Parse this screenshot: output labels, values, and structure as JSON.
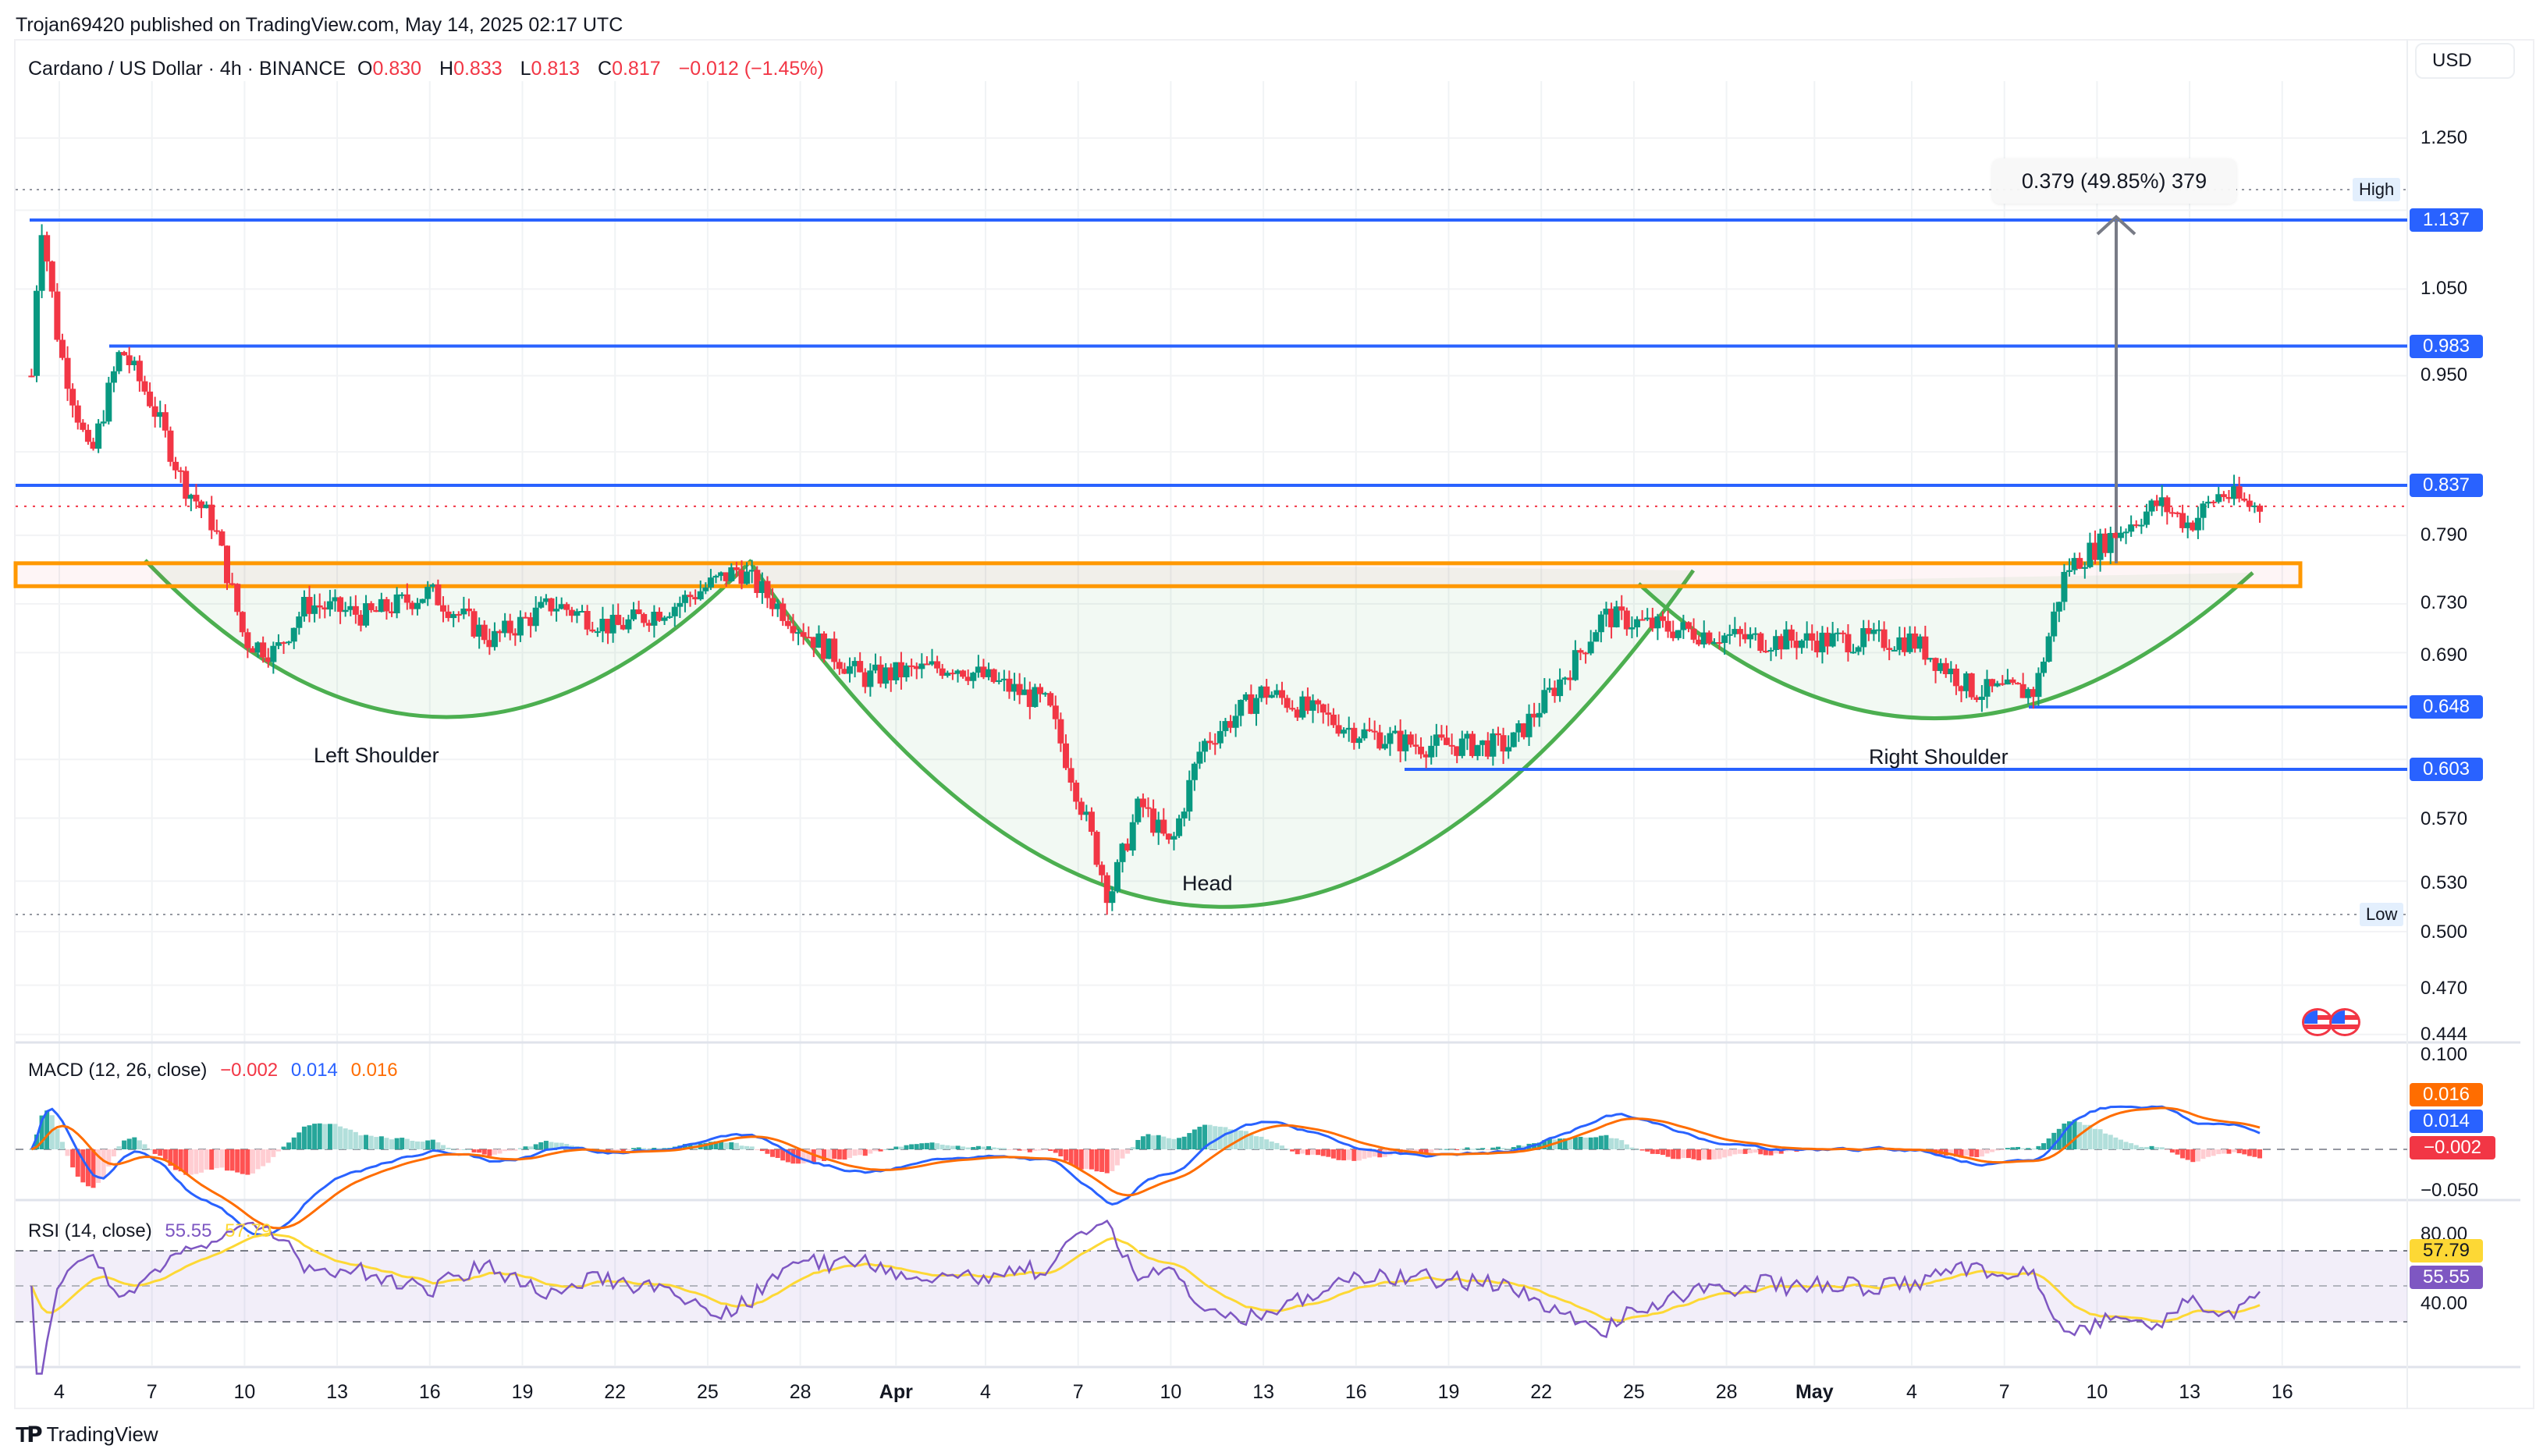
{
  "header": {
    "published": "Trojan69420 published on TradingView.com, May 14, 2025 02:17 UTC"
  },
  "symbol": {
    "title": "Cardano / US Dollar · 4h · BINANCE",
    "o_label": "O",
    "o": "0.830",
    "h_label": "H",
    "h": "0.833",
    "l_label": "L",
    "l": "0.813",
    "c_label": "C",
    "c": "0.817",
    "change": "−0.012 (−1.45%)"
  },
  "currency_button": "USD",
  "price_axis": {
    "ticks": [
      "1.250",
      "1.050",
      "0.950",
      "0.790",
      "0.730",
      "0.690",
      "0.570",
      "0.530",
      "0.500",
      "0.470",
      "0.444"
    ],
    "tags": [
      {
        "value": "1.137",
        "color": "#2962ff"
      },
      {
        "value": "0.983",
        "color": "#2962ff"
      },
      {
        "value": "0.837",
        "color": "#2962ff"
      },
      {
        "value": "0.648",
        "color": "#2962ff"
      },
      {
        "value": "0.603",
        "color": "#2962ff"
      }
    ],
    "high_label": "High",
    "low_label": "Low"
  },
  "measurement": {
    "text": "0.379 (49.85%) 379"
  },
  "pattern_labels": {
    "left_shoulder": "Left Shoulder",
    "head": "Head",
    "right_shoulder": "Right Shoulder"
  },
  "macd": {
    "title": "MACD (12, 26, close)",
    "hist": "−0.002",
    "macd": "0.014",
    "signal": "0.016",
    "axis": [
      "0.100",
      "−0.050"
    ],
    "tags": [
      {
        "value": "0.016",
        "color": "#ff6d00"
      },
      {
        "value": "0.014",
        "color": "#2962ff"
      },
      {
        "value": "−0.002",
        "color": "#f23645"
      }
    ]
  },
  "rsi": {
    "title": "RSI (14, close)",
    "rsi": "55.55",
    "ma": "57.79",
    "axis": [
      "80.00",
      "40.00"
    ],
    "tags": [
      {
        "value": "57.79",
        "color": "#fdd835",
        "text": "#131722"
      },
      {
        "value": "55.55",
        "color": "#7e57c2",
        "text": "#ffffff"
      }
    ]
  },
  "x_axis": {
    "labels": [
      {
        "t": "4",
        "bold": false
      },
      {
        "t": "7",
        "bold": false
      },
      {
        "t": "10",
        "bold": false
      },
      {
        "t": "13",
        "bold": false
      },
      {
        "t": "16",
        "bold": false
      },
      {
        "t": "19",
        "bold": false
      },
      {
        "t": "22",
        "bold": false
      },
      {
        "t": "25",
        "bold": false
      },
      {
        "t": "28",
        "bold": false
      },
      {
        "t": "Apr",
        "bold": true
      },
      {
        "t": "4",
        "bold": false
      },
      {
        "t": "7",
        "bold": false
      },
      {
        "t": "10",
        "bold": false
      },
      {
        "t": "13",
        "bold": false
      },
      {
        "t": "16",
        "bold": false
      },
      {
        "t": "19",
        "bold": false
      },
      {
        "t": "22",
        "bold": false
      },
      {
        "t": "25",
        "bold": false
      },
      {
        "t": "28",
        "bold": false
      },
      {
        "t": "May",
        "bold": true
      },
      {
        "t": "4",
        "bold": false
      },
      {
        "t": "7",
        "bold": false
      },
      {
        "t": "10",
        "bold": false
      },
      {
        "t": "13",
        "bold": false
      },
      {
        "t": "16",
        "bold": false
      }
    ]
  },
  "brand": "TradingView",
  "colors": {
    "up": "#089981",
    "down": "#f23645",
    "level": "#2962ff",
    "zone": "#ff9800",
    "arc": "#4caf50",
    "macd": "#2962ff",
    "signal": "#ff6d00",
    "rsi": "#7e57c2",
    "rsi_ma": "#fdd835"
  },
  "chart_data": {
    "type": "candlestick",
    "title": "Cardano / US Dollar · 4h · BINANCE",
    "xlabel": "",
    "ylabel": "USD",
    "ylim": [
      0.444,
      1.3
    ],
    "scale": "log",
    "x_ticks": [
      "4",
      "7",
      "10",
      "13",
      "16",
      "19",
      "22",
      "25",
      "28",
      "Apr",
      "4",
      "7",
      "10",
      "13",
      "16",
      "19",
      "22",
      "25",
      "28",
      "May",
      "4",
      "7",
      "10",
      "13",
      "16"
    ],
    "path_waypoints": [
      {
        "date": "Mar 3",
        "close": 0.95
      },
      {
        "date": "Mar 3",
        "close": 1.14
      },
      {
        "date": "Mar 4",
        "close": 0.98
      },
      {
        "date": "Mar 5",
        "close": 0.86
      },
      {
        "date": "Mar 6",
        "close": 0.98
      },
      {
        "date": "Mar 7",
        "close": 0.92
      },
      {
        "date": "Mar 8",
        "close": 0.84
      },
      {
        "date": "Mar 9",
        "close": 0.8
      },
      {
        "date": "Mar 10",
        "close": 0.7
      },
      {
        "date": "Mar 11",
        "close": 0.69
      },
      {
        "date": "Mar 12",
        "close": 0.73
      },
      {
        "date": "Mar 14",
        "close": 0.72
      },
      {
        "date": "Mar 16",
        "close": 0.74
      },
      {
        "date": "Mar 18",
        "close": 0.7
      },
      {
        "date": "Mar 20",
        "close": 0.73
      },
      {
        "date": "Mar 22",
        "close": 0.71
      },
      {
        "date": "Mar 24",
        "close": 0.73
      },
      {
        "date": "Mar 26",
        "close": 0.76
      },
      {
        "date": "Mar 28",
        "close": 0.71
      },
      {
        "date": "Mar 30",
        "close": 0.67
      },
      {
        "date": "Apr 2",
        "close": 0.68
      },
      {
        "date": "Apr 5",
        "close": 0.65
      },
      {
        "date": "Apr 7",
        "close": 0.52
      },
      {
        "date": "Apr 8",
        "close": 0.58
      },
      {
        "date": "Apr 9",
        "close": 0.55
      },
      {
        "date": "Apr 10",
        "close": 0.62
      },
      {
        "date": "Apr 12",
        "close": 0.66
      },
      {
        "date": "Apr 15",
        "close": 0.63
      },
      {
        "date": "Apr 17",
        "close": 0.62
      },
      {
        "date": "Apr 20",
        "close": 0.62
      },
      {
        "date": "Apr 22",
        "close": 0.68
      },
      {
        "date": "Apr 23",
        "close": 0.72
      },
      {
        "date": "Apr 25",
        "close": 0.71
      },
      {
        "date": "Apr 28",
        "close": 0.7
      },
      {
        "date": "Apr 30",
        "close": 0.7
      },
      {
        "date": "May 3",
        "close": 0.7
      },
      {
        "date": "May 5",
        "close": 0.66
      },
      {
        "date": "May 7",
        "close": 0.66
      },
      {
        "date": "May 8",
        "close": 0.76
      },
      {
        "date": "May 9",
        "close": 0.78
      },
      {
        "date": "May 11",
        "close": 0.82
      },
      {
        "date": "May 12",
        "close": 0.8
      },
      {
        "date": "May 13",
        "close": 0.83
      },
      {
        "date": "May 14",
        "close": 0.817
      }
    ],
    "horizontal_levels": [
      1.137,
      0.983,
      0.837,
      0.648,
      0.603
    ],
    "neckline_zone": [
      0.745,
      0.765
    ],
    "high": 1.18,
    "low": 0.512,
    "annotations": [
      "Left Shoulder",
      "Head",
      "Right Shoulder",
      "0.379 (49.85%) 379"
    ],
    "indicators": {
      "macd": {
        "params": "12, 26, close",
        "histogram": -0.002,
        "macd": 0.014,
        "signal": 0.016,
        "ylim": [
          -0.05,
          0.1
        ]
      },
      "rsi": {
        "params": "14, close",
        "rsi": 55.55,
        "ma": 57.79,
        "bands": [
          30,
          70
        ],
        "ticks": [
          80,
          40
        ]
      }
    }
  }
}
